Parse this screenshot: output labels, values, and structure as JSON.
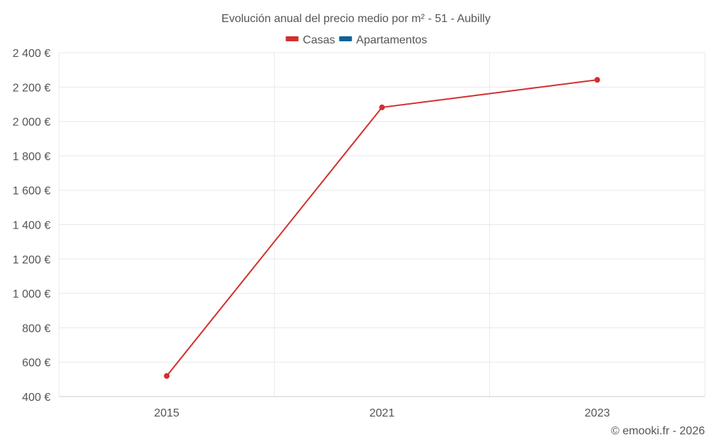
{
  "chart_data": {
    "type": "line",
    "title": "Evolución anual del precio medio por m² - 51 - Aubilly",
    "categories": [
      "2015",
      "2021",
      "2023"
    ],
    "series": [
      {
        "name": "Casas",
        "color": "#d32f2f",
        "values": [
          520,
          2082,
          2242
        ]
      },
      {
        "name": "Apartamentos",
        "color": "#0d6395",
        "values": [
          null,
          null,
          null
        ]
      }
    ],
    "yticks": [
      "400 €",
      "600 €",
      "800 €",
      "1 000 €",
      "1 200 €",
      "1 400 €",
      "1 600 €",
      "1 800 €",
      "2 000 €",
      "2 200 €",
      "2 400 €"
    ],
    "ylim": [
      400,
      2400
    ],
    "xlabel": "",
    "ylabel": "",
    "grid": true,
    "legend_position": "top-center"
  },
  "credit": "© emooki.fr - 2026"
}
